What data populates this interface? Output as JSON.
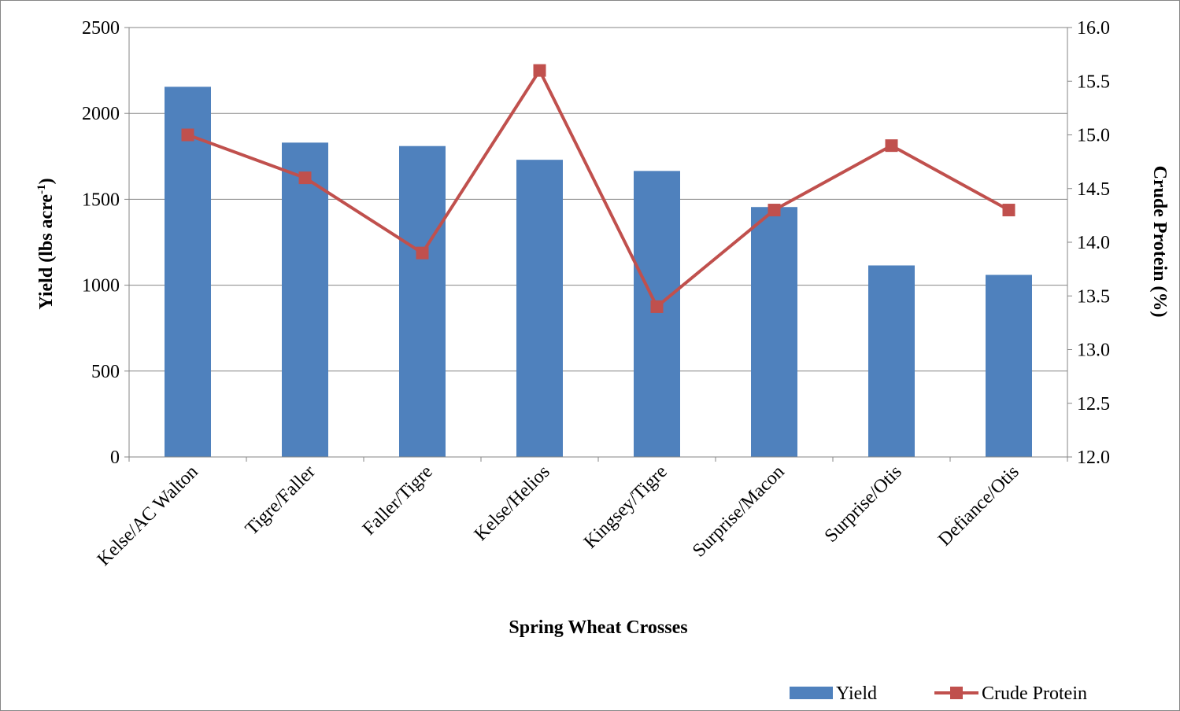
{
  "chart_data": {
    "type": "bar+line",
    "categories": [
      "Kelse/AC Walton",
      "Tigre/Faller",
      "Faller/Tigre",
      "Kelse/Helios",
      "Kingsey/Tigre",
      "Surprise/Macon",
      "Surprise/Otis",
      "Defiance/Otis"
    ],
    "series": [
      {
        "name": "Yield",
        "type": "bar",
        "axis": "left",
        "color": "#4F81BD",
        "values": [
          2155,
          1830,
          1810,
          1730,
          1665,
          1455,
          1115,
          1060
        ]
      },
      {
        "name": "Crude Protein",
        "type": "line",
        "axis": "right",
        "color": "#C0504D",
        "values": [
          15.0,
          14.6,
          13.9,
          15.6,
          13.4,
          14.3,
          14.9,
          14.3
        ]
      }
    ],
    "xlabel": "Spring Wheat Crosses",
    "ylabel": "Yield (lbs acre",
    "ylabel_superscript": "-1",
    "ylabel_suffix": ")",
    "y2label": "Crude Protein (%)",
    "ylim": [
      0,
      2500
    ],
    "y2lim": [
      12.0,
      16.0
    ],
    "yticks": [
      "0",
      "500",
      "1000",
      "1500",
      "2000",
      "2500"
    ],
    "y2ticks": [
      "12.0",
      "12.5",
      "13.0",
      "13.5",
      "14.0",
      "14.5",
      "15.0",
      "15.5",
      "16.0"
    ],
    "grid": "horizontal",
    "legend": {
      "position": "bottom-right",
      "entries": [
        "Yield",
        "Crude Protein"
      ]
    }
  }
}
